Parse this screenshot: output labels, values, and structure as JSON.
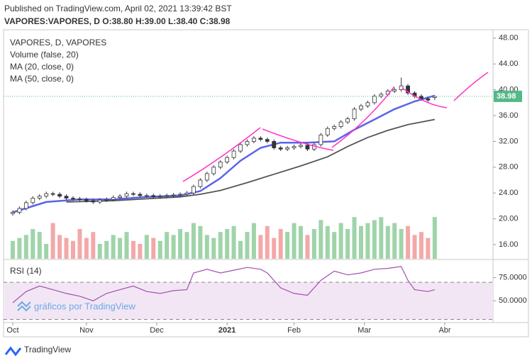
{
  "chart_data": {
    "type": "candlestick",
    "header_top": "Published on TradingView.com, April 02, 2021 13:39:42 BST",
    "header_ohlc": "VAPORES:VAPORES, D  O:38.80 H:39.00 L:38.40 C:38.98",
    "title": "VAPORES, D, VAPORES",
    "watermark": "gráficos por TradingView",
    "brand": "TradingView",
    "up_color": "#ffffff",
    "down_color": "#333333",
    "last_price_color": "#53b987",
    "x": [
      0,
      2,
      4,
      6,
      8,
      10,
      12,
      14,
      16,
      18,
      20,
      22,
      24,
      26,
      28,
      30,
      32,
      34,
      36,
      38,
      40,
      42,
      44,
      46,
      48,
      50,
      52,
      54,
      56,
      58,
      60,
      62,
      64,
      66,
      68,
      70,
      72,
      74,
      76,
      78,
      80,
      82,
      84,
      86,
      88,
      90,
      92,
      94,
      96,
      98,
      100,
      102,
      104,
      106,
      108,
      110,
      112,
      114,
      116,
      118,
      120,
      122,
      124,
      126
    ],
    "open": [
      20.8,
      21.0,
      21.6,
      22.5,
      23.2,
      23.5,
      23.9,
      23.8,
      23.5,
      23.2,
      23.1,
      23.0,
      22.8,
      22.6,
      22.9,
      23.0,
      23.3,
      23.5,
      23.9,
      23.8,
      23.6,
      23.6,
      23.4,
      23.5,
      23.6,
      23.7,
      23.8,
      24.0,
      25.0,
      26.0,
      27.0,
      28.0,
      28.8,
      29.5,
      30.5,
      31.5,
      32.0,
      32.5,
      32.3,
      32.0,
      31.0,
      30.8,
      31.0,
      31.2,
      31.4,
      30.8,
      31.5,
      33.0,
      34.0,
      34.3,
      35.0,
      35.5,
      37.0,
      37.5,
      38.0,
      39.0,
      39.3,
      39.8,
      40.0,
      40.6,
      39.5,
      39.0,
      38.6,
      38.8
    ],
    "high": [
      21.3,
      21.9,
      22.8,
      23.5,
      23.8,
      24.2,
      24.2,
      24.1,
      23.8,
      23.5,
      23.4,
      23.3,
      23.1,
      23.2,
      23.3,
      23.6,
      23.8,
      24.2,
      24.2,
      24.1,
      23.9,
      23.9,
      23.8,
      23.9,
      24.0,
      24.1,
      24.3,
      25.3,
      26.3,
      27.3,
      28.3,
      29.1,
      29.8,
      30.8,
      31.8,
      32.3,
      32.8,
      32.8,
      32.6,
      32.3,
      31.3,
      31.3,
      31.5,
      31.7,
      31.7,
      31.8,
      33.3,
      34.3,
      34.6,
      35.3,
      35.8,
      37.3,
      37.8,
      38.3,
      39.3,
      39.6,
      40.1,
      40.3,
      41.9,
      40.9,
      39.8,
      39.3,
      38.9,
      39.0
    ],
    "low": [
      20.5,
      20.7,
      21.3,
      22.2,
      22.9,
      23.2,
      23.5,
      23.2,
      22.9,
      22.8,
      22.7,
      22.5,
      22.3,
      22.3,
      22.6,
      22.7,
      23.0,
      23.2,
      23.5,
      23.3,
      23.3,
      23.1,
      23.1,
      23.2,
      23.3,
      23.4,
      23.5,
      23.7,
      24.7,
      25.7,
      26.7,
      27.7,
      28.5,
      29.2,
      30.2,
      31.2,
      31.7,
      32.0,
      31.7,
      30.7,
      30.5,
      30.5,
      30.7,
      30.9,
      30.5,
      30.5,
      31.2,
      32.7,
      33.7,
      34.0,
      34.7,
      35.2,
      36.7,
      37.2,
      37.7,
      38.7,
      39.0,
      39.5,
      39.7,
      39.2,
      38.7,
      38.3,
      38.1,
      38.4
    ],
    "close": [
      21.0,
      21.6,
      22.5,
      23.2,
      23.5,
      23.9,
      23.8,
      23.5,
      23.2,
      23.1,
      23.0,
      22.8,
      22.6,
      22.9,
      23.0,
      23.3,
      23.5,
      23.9,
      23.8,
      23.6,
      23.6,
      23.4,
      23.5,
      23.6,
      23.7,
      23.8,
      24.0,
      25.0,
      26.0,
      27.0,
      28.0,
      28.8,
      29.5,
      30.5,
      31.5,
      32.0,
      32.5,
      32.3,
      32.0,
      31.0,
      30.8,
      31.0,
      31.2,
      31.4,
      30.8,
      31.5,
      33.0,
      34.0,
      34.3,
      35.0,
      35.5,
      37.0,
      37.5,
      38.0,
      39.0,
      39.3,
      39.8,
      40.0,
      40.6,
      39.5,
      39.0,
      38.6,
      38.4,
      38.98
    ],
    "xlim": [
      -2.75,
      143.4
    ],
    "xticks": [
      {
        "value": 0,
        "label": "Oct"
      },
      {
        "value": 22,
        "label": "Nov"
      },
      {
        "value": 43,
        "label": "Dec"
      },
      {
        "value": 64,
        "label": "2021"
      },
      {
        "value": 84,
        "label": "Feb"
      },
      {
        "value": 105,
        "label": "Mar"
      },
      {
        "value": 129,
        "label": "Abr"
      }
    ],
    "ylim": [
      13.8,
      49.3
    ],
    "yticks": [
      {
        "value": 16,
        "label": "16.00"
      },
      {
        "value": 20,
        "label": "20.00"
      },
      {
        "value": 24,
        "label": "24.00"
      },
      {
        "value": 28,
        "label": "28.00"
      },
      {
        "value": 32,
        "label": "32.00"
      },
      {
        "value": 36,
        "label": "36.00"
      },
      {
        "value": 40,
        "label": "40.00"
      },
      {
        "value": 44,
        "label": "44.00"
      },
      {
        "value": 48,
        "label": "48.00"
      }
    ],
    "volume": {
      "name": "Volume (false, 20)",
      "up_color": "#9fd4a9",
      "down_color": "#f4a8a8",
      "vlim": [
        0,
        100
      ],
      "values": [
        30,
        35,
        40,
        50,
        45,
        25,
        60,
        40,
        35,
        30,
        50,
        35,
        45,
        25,
        30,
        40,
        35,
        45,
        30,
        25,
        40,
        35,
        30,
        45,
        40,
        50,
        45,
        60,
        55,
        40,
        35,
        45,
        50,
        55,
        30,
        45,
        60,
        40,
        55,
        35,
        50,
        45,
        60,
        55,
        40,
        50,
        65,
        55,
        45,
        60,
        50,
        70,
        55,
        60,
        65,
        70,
        55,
        60,
        50,
        55,
        40,
        45,
        35,
        70
      ]
    },
    "overlays": [
      {
        "name": "MA (20, close, 0)",
        "color": "#5b63e8",
        "x": [
          0,
          10,
          20,
          30,
          40,
          50,
          56,
          62,
          68,
          74,
          80,
          88,
          96,
          102,
          108,
          114,
          120,
          126
        ],
        "values": [
          21.0,
          22.6,
          23.0,
          23.0,
          23.4,
          23.6,
          24.3,
          26.3,
          29.0,
          31.0,
          31.8,
          31.8,
          32.0,
          33.8,
          35.4,
          37.0,
          38.2,
          39.1
        ]
      },
      {
        "name": "MA (50, close, 0)",
        "color": "#555555",
        "x": [
          16,
          30,
          40,
          50,
          56,
          62,
          70,
          78,
          86,
          94,
          100,
          106,
          112,
          118,
          126
        ],
        "values": [
          22.6,
          22.8,
          23.1,
          23.4,
          23.8,
          24.4,
          25.6,
          26.9,
          28.2,
          29.6,
          31.2,
          32.6,
          33.7,
          34.6,
          35.4
        ]
      }
    ],
    "rsi": {
      "name": "RSI (14)",
      "color": "#a050b0",
      "band_color": "#f3e6f4",
      "x": [
        0,
        4,
        8,
        12,
        16,
        20,
        24,
        28,
        32,
        36,
        40,
        44,
        48,
        52,
        54,
        58,
        62,
        66,
        70,
        74,
        76,
        80,
        84,
        88,
        92,
        96,
        100,
        104,
        108,
        112,
        116,
        118,
        120,
        124,
        126
      ],
      "values": [
        48,
        60,
        66,
        62,
        58,
        55,
        50,
        58,
        62,
        66,
        60,
        58,
        61,
        62,
        80,
        84,
        80,
        83,
        86,
        84,
        80,
        64,
        58,
        56,
        72,
        82,
        78,
        80,
        84,
        85,
        87,
        72,
        62,
        60,
        62
      ],
      "ylim": [
        26.6,
        93
      ],
      "levels": [
        70,
        30
      ],
      "yticks": [
        {
          "value": 50,
          "label": "50.0000"
        },
        {
          "value": 75,
          "label": "75.0000"
        }
      ]
    }
  }
}
